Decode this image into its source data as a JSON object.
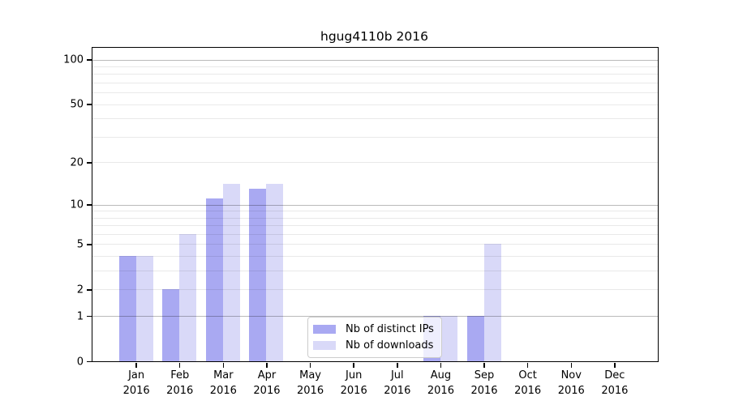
{
  "chart_data": {
    "type": "bar",
    "title": "hgug4110b 2016",
    "x_label_year": "2016",
    "categories": [
      "Jan",
      "Feb",
      "Mar",
      "Apr",
      "May",
      "Jun",
      "Jul",
      "Aug",
      "Sep",
      "Oct",
      "Nov",
      "Dec"
    ],
    "series": [
      {
        "name": "Nb of distinct IPs",
        "color": "#a9a9f2",
        "values": [
          4,
          2,
          11,
          13,
          0,
          0,
          0,
          1,
          1,
          0,
          0,
          0
        ]
      },
      {
        "name": "Nb of downloads",
        "color": "#d9d9f8",
        "values": [
          4,
          6,
          14,
          14,
          0,
          0,
          0,
          1,
          5,
          0,
          0,
          0
        ]
      }
    ],
    "y_axis": {
      "scale": "log1p",
      "ylim": [
        0,
        120
      ],
      "tick_values": [
        0,
        1,
        2,
        5,
        10,
        20,
        50,
        100
      ],
      "major_gridlines": [
        1,
        10,
        100
      ],
      "minor_gridlines": [
        2,
        3,
        4,
        5,
        6,
        7,
        8,
        9,
        20,
        30,
        40,
        50,
        60,
        70,
        80,
        90
      ]
    },
    "legend": {
      "position": "bottom-center"
    },
    "grid": "on"
  }
}
